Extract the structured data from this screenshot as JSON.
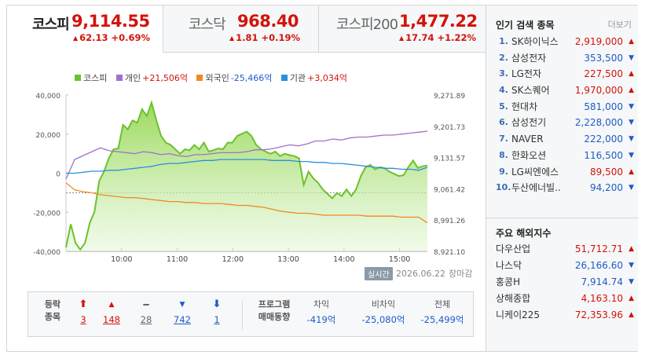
{
  "tabs": [
    {
      "name": "코스피",
      "value": "9,114.55",
      "change": "62.13 +0.69%",
      "dir": "up",
      "active": true
    },
    {
      "name": "코스닥",
      "value": "968.40",
      "change": "1.81 +0.19%",
      "dir": "up",
      "active": false
    },
    {
      "name": "코스피200",
      "value": "1,477.22",
      "change": "17.74 +1.22%",
      "dir": "up",
      "active": false
    }
  ],
  "legend": [
    {
      "name": "코스피",
      "value": "",
      "color": "#6cc22a"
    },
    {
      "name": "개인",
      "value": "+21,506억",
      "color": "#a070c8"
    },
    {
      "name": "외국인",
      "value": "-25,466억",
      "color": "#f08a1e"
    },
    {
      "name": "기관",
      "value": "+3,034억",
      "color": "#2b8fdc"
    }
  ],
  "chart_data": {
    "type": "line",
    "x_ticks": [
      "10:00",
      "11:00",
      "12:00",
      "13:00",
      "14:00",
      "15:00"
    ],
    "y_left_ticks": [
      "40,000",
      "20,000",
      "0",
      "-20,000",
      "-40,000"
    ],
    "y_right_ticks": [
      "9,271.89",
      "9,201.73",
      "9,131.57",
      "9,061.42",
      "8,991.26",
      "8,921.10"
    ],
    "y_left_range": [
      -40000,
      40000
    ],
    "y_right_range": [
      8921.1,
      9271.89
    ],
    "reference_close": 9052.42,
    "series": [
      {
        "name": "코스피",
        "axis": "right",
        "color": "#6cc22a",
        "fill": true,
        "values": [
          8930,
          8982,
          8940,
          8925,
          8940,
          8985,
          9010,
          9080,
          9100,
          9130,
          9150,
          9152,
          9205,
          9195,
          9215,
          9210,
          9240,
          9225,
          9255,
          9215,
          9180,
          9165,
          9160,
          9150,
          9140,
          9150,
          9148,
          9160,
          9150,
          9165,
          9145,
          9148,
          9152,
          9150,
          9165,
          9165,
          9180,
          9185,
          9190,
          9180,
          9160,
          9150,
          9145,
          9140,
          9145,
          9135,
          9140,
          9137,
          9135,
          9130,
          9070,
          9100,
          9085,
          9075,
          9060,
          9050,
          9040,
          9052,
          9045,
          9060,
          9045,
          9060,
          9090,
          9110,
          9115,
          9105,
          9110,
          9108,
          9100,
          9095,
          9090,
          9092,
          9110,
          9125,
          9108,
          9112,
          9114
        ]
      },
      {
        "name": "개인",
        "axis": "left",
        "color": "#a070c8",
        "values": [
          -3000,
          7000,
          9000,
          11000,
          13000,
          11500,
          11000,
          10500,
          10000,
          11000,
          10500,
          9500,
          10000,
          9000,
          8500,
          9500,
          9500,
          10000,
          10500,
          10500,
          10500,
          11000,
          12000,
          12000,
          12500,
          13500,
          14500,
          14000,
          15000,
          16500,
          16500,
          17500,
          17000,
          18000,
          18500,
          18500,
          19000,
          19500,
          19500,
          20000,
          20500,
          21000,
          21500
        ]
      },
      {
        "name": "외국인",
        "axis": "left",
        "color": "#f08a1e",
        "values": [
          -5000,
          -8500,
          -9500,
          -10000,
          -11000,
          -11500,
          -12000,
          -12500,
          -12500,
          -13000,
          -13500,
          -14000,
          -14500,
          -14500,
          -15000,
          -15000,
          -15500,
          -15500,
          -15500,
          -16000,
          -16500,
          -16500,
          -17000,
          -17500,
          -18500,
          -19500,
          -20000,
          -20500,
          -20500,
          -21000,
          -21500,
          -21500,
          -21500,
          -21500,
          -21500,
          -22000,
          -22000,
          -22000,
          -22000,
          -22500,
          -22500,
          -22500,
          -25466
        ]
      },
      {
        "name": "기관",
        "axis": "left",
        "color": "#2b8fdc",
        "values": [
          0,
          0,
          500,
          1000,
          1000,
          1500,
          1500,
          2000,
          2500,
          3000,
          3500,
          4500,
          5000,
          5000,
          5500,
          6000,
          6500,
          6500,
          7000,
          7000,
          7000,
          7000,
          7000,
          7000,
          6500,
          6500,
          6500,
          6000,
          6000,
          5500,
          5500,
          5000,
          5000,
          4500,
          4000,
          3500,
          3000,
          2500,
          2500,
          2000,
          2000,
          1500,
          3034
        ]
      }
    ]
  },
  "status": {
    "realtime": "실시간",
    "date": "2026.06.22",
    "closed": "장마감"
  },
  "breadth": {
    "label_line1": "등락",
    "label_line2": "종목",
    "items": [
      {
        "symbol": "⬆",
        "cls": "up2",
        "count": "3",
        "color": "red"
      },
      {
        "symbol": "▲",
        "cls": "up",
        "count": "148",
        "color": "red"
      },
      {
        "symbol": "━",
        "cls": "flat",
        "count": "28",
        "color": "gray"
      },
      {
        "symbol": "▼",
        "cls": "down",
        "count": "742",
        "color": "blue"
      },
      {
        "symbol": "⬇",
        "cls": "down2",
        "count": "1",
        "color": "blue"
      }
    ]
  },
  "program": {
    "label_line1": "프로그램",
    "label_line2": "매매동향",
    "items": [
      {
        "head": "차익",
        "value": "-419억"
      },
      {
        "head": "비차익",
        "value": "-25,080억"
      },
      {
        "head": "전체",
        "value": "-25,499억"
      }
    ]
  },
  "popular": {
    "title": "인기 검색 종목",
    "more": "더보기",
    "items": [
      {
        "rank": "1.",
        "name": "SK하이닉스",
        "price": "2,919,000",
        "dir": "up"
      },
      {
        "rank": "2.",
        "name": "삼성전자",
        "price": "353,500",
        "dir": "down"
      },
      {
        "rank": "3.",
        "name": "LG전자",
        "price": "227,500",
        "dir": "up"
      },
      {
        "rank": "4.",
        "name": "SK스퀘어",
        "price": "1,970,000",
        "dir": "up"
      },
      {
        "rank": "5.",
        "name": "현대차",
        "price": "581,000",
        "dir": "down"
      },
      {
        "rank": "6.",
        "name": "삼성전기",
        "price": "2,228,000",
        "dir": "down"
      },
      {
        "rank": "7.",
        "name": "NAVER",
        "price": "222,000",
        "dir": "down"
      },
      {
        "rank": "8.",
        "name": "한화오션",
        "price": "116,500",
        "dir": "down"
      },
      {
        "rank": "9.",
        "name": "LG씨엔에스",
        "price": "89,500",
        "dir": "up"
      },
      {
        "rank": "10.",
        "name": "두산에너빌..",
        "price": "94,200",
        "dir": "down"
      }
    ]
  },
  "overseas": {
    "title": "주요 해외지수",
    "items": [
      {
        "name": "다우산업",
        "value": "51,712.71",
        "dir": "up"
      },
      {
        "name": "나스닥",
        "value": "26,166.60",
        "dir": "down"
      },
      {
        "name": "홍콩H",
        "value": "7,914.74",
        "dir": "down"
      },
      {
        "name": "상해종합",
        "value": "4,163.10",
        "dir": "up"
      },
      {
        "name": "니케이225",
        "value": "72,353.96",
        "dir": "up"
      }
    ]
  },
  "colors": {
    "up": "#d2130b",
    "down": "#1e5bc6"
  }
}
